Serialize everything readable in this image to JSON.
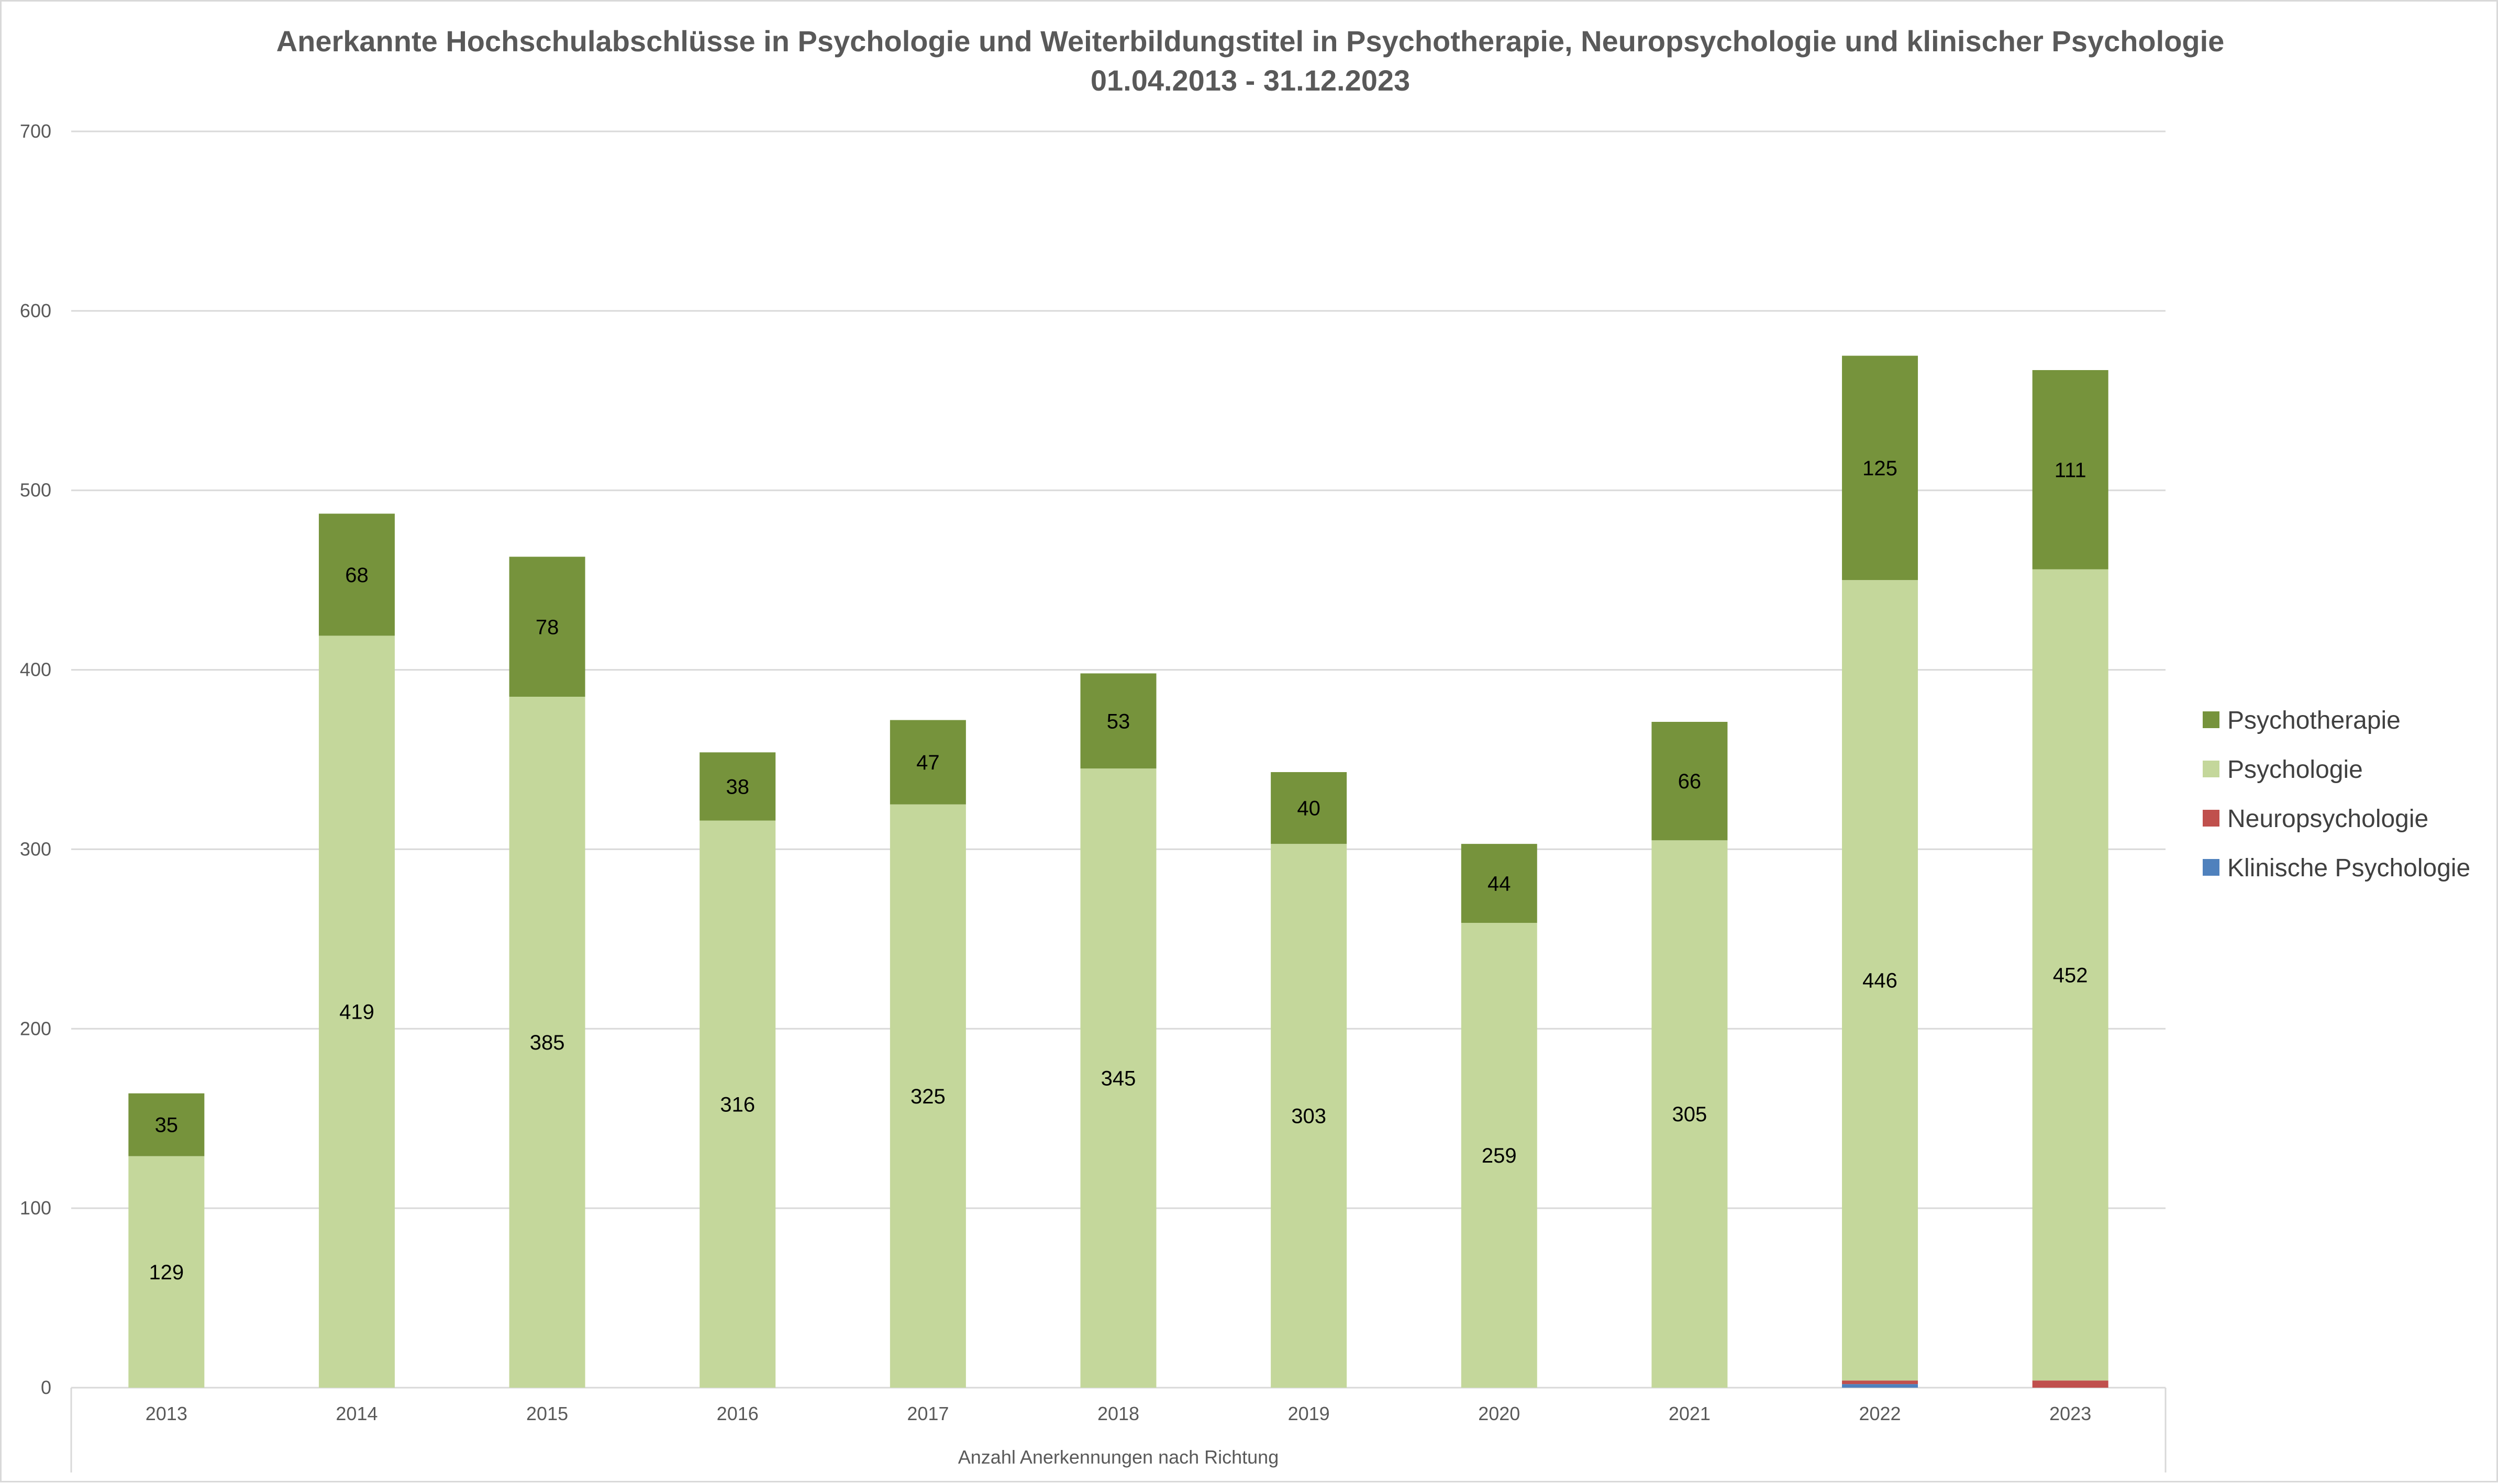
{
  "chart_data": {
    "type": "bar",
    "stacked": true,
    "title": "Anerkannte Hochschulabschlüsse in Psychologie und Weiterbildungstitel in Psychotherapie, Neuropsychologie und klinischer Psychologie",
    "subtitle": "01.04.2013 - 31.12.2023",
    "xlabel": "Anzahl Anerkennungen nach Richtung",
    "ylabel": "",
    "ylim": [
      0,
      700
    ],
    "yticks": [
      0,
      100,
      200,
      300,
      400,
      500,
      600,
      700
    ],
    "grid": true,
    "legend_position": "right",
    "categories": [
      "2013",
      "2014",
      "2015",
      "2016",
      "2017",
      "2018",
      "2019",
      "2020",
      "2021",
      "2022",
      "2023"
    ],
    "series": [
      {
        "name": "Klinische Psychologie",
        "color": "#4f81bd",
        "values": [
          0,
          0,
          0,
          0,
          0,
          0,
          0,
          0,
          0,
          2,
          0
        ],
        "show_labels": false
      },
      {
        "name": "Neuropsychologie",
        "color": "#c0504d",
        "values": [
          0,
          0,
          0,
          0,
          0,
          0,
          0,
          0,
          0,
          2,
          4
        ],
        "show_labels": false
      },
      {
        "name": "Psychologie",
        "color": "#c4d79b",
        "values": [
          129,
          419,
          385,
          316,
          325,
          345,
          303,
          259,
          305,
          446,
          452
        ],
        "show_labels": true
      },
      {
        "name": "Psychotherapie",
        "color": "#76933c",
        "values": [
          35,
          68,
          78,
          38,
          47,
          53,
          40,
          44,
          66,
          125,
          111
        ],
        "show_labels": true
      }
    ],
    "legend_order": [
      "Psychotherapie",
      "Psychologie",
      "Neuropsychologie",
      "Klinische Psychologie"
    ]
  },
  "colors": {
    "gridline": "#d9d9d9",
    "axis_text": "#595959",
    "title_text": "#595959"
  }
}
